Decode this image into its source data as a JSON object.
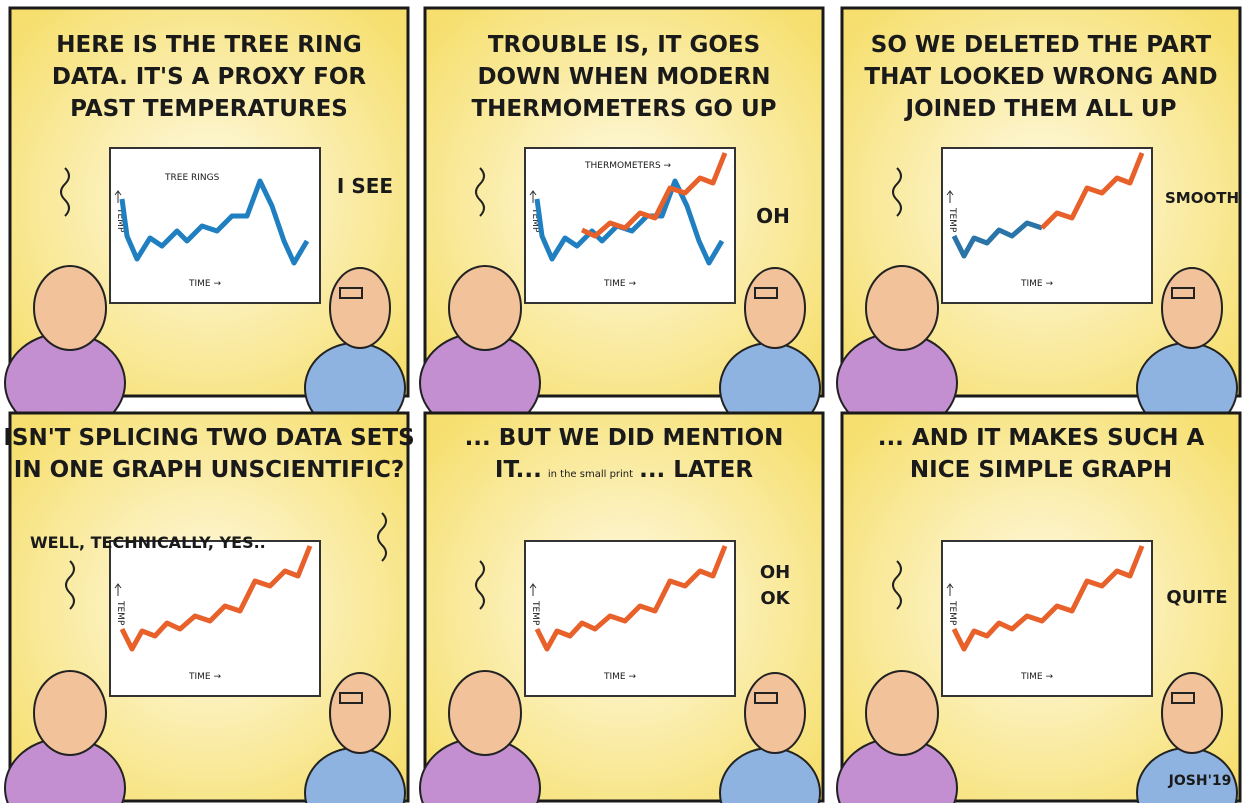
{
  "panels": [
    {
      "caption": [
        "HERE IS THE TREE RING",
        "DATA. IT'S A PROXY FOR",
        "PAST TEMPERATURES"
      ],
      "speech": [
        [
          "I SEE"
        ]
      ],
      "chart": {
        "y_label": "TEMP",
        "x_label": "TIME →",
        "annotation": "TREE RINGS"
      }
    },
    {
      "caption": [
        "TROUBLE IS, IT GOES",
        "DOWN WHEN MODERN",
        "THERMOMETERS GO UP"
      ],
      "speech": [
        [
          "OH"
        ]
      ],
      "chart": {
        "y_label": "TEMP",
        "x_label": "TIME →",
        "annotation": "THERMOMETERS →"
      }
    },
    {
      "caption": [
        "SO WE DELETED THE PART",
        "THAT LOOKED WRONG AND",
        "JOINED THEM ALL UP"
      ],
      "speech": [
        [
          "SMOOTH"
        ]
      ],
      "chart": {
        "y_label": "TEMP",
        "x_label": "TIME →"
      }
    },
    {
      "caption": [
        "ISN'T SPLICING TWO DATA SETS",
        "IN ONE GRAPH UNSCIENTIFIC?"
      ],
      "speech": [
        [
          "WELL, TECHNICALLY, YES.."
        ]
      ],
      "chart": {
        "y_label": "TEMP",
        "x_label": "TIME →"
      }
    },
    {
      "caption": [
        "... BUT WE DID MENTION",
        [
          "IT...",
          "in the small print",
          "... LATER"
        ]
      ],
      "speech": [
        [
          "OH",
          "OK"
        ]
      ],
      "chart": {
        "y_label": "TEMP",
        "x_label": "TIME →"
      }
    },
    {
      "caption": [
        "... AND IT MAKES SUCH A",
        "NICE SIMPLE GRAPH"
      ],
      "speech": [
        [
          "QUITE"
        ]
      ],
      "chart": {
        "y_label": "TEMP",
        "x_label": "TIME →"
      }
    }
  ],
  "signature": "JOSH'19"
}
